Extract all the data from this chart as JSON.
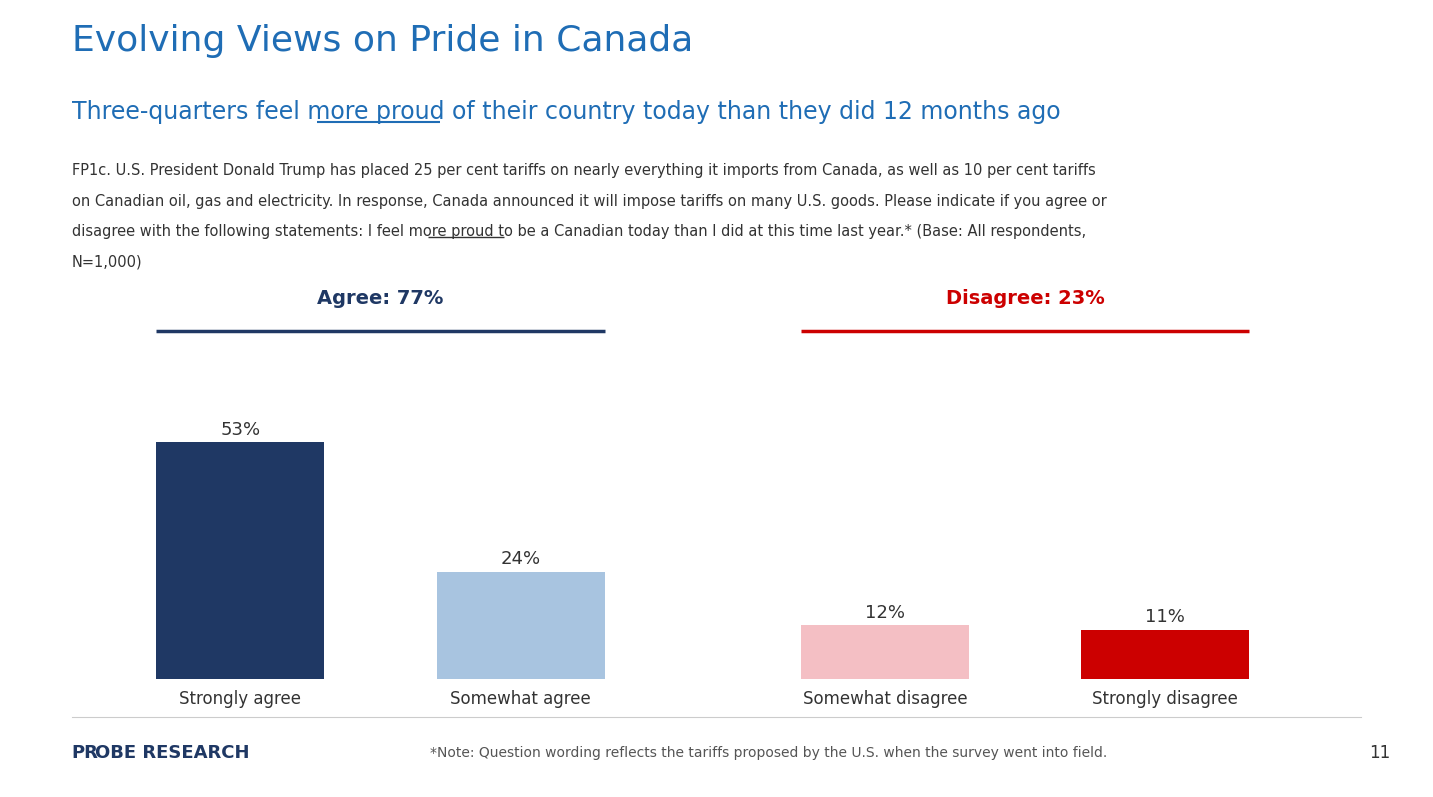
{
  "title": "Evolving Views on Pride in Canada",
  "subtitle": "Three-quarters feel more proud of their country today than they did 12 months ago",
  "subtitle_underline_word": "more proud",
  "subtitle_before_underline": "Three-quarters feel ",
  "body_text_line1": "FP1c. U.S. President Donald Trump has placed 25 per cent tariffs on nearly everything it imports from Canada, as well as 10 per cent tariffs",
  "body_text_line2": "on Canadian oil, gas and electricity. In response, Canada announced it will impose tariffs on many U.S. goods. Please indicate if you agree or",
  "body_text_line3": "disagree with the following statements: I feel more proud to be a Canadian today than I did at this time last year.* (Base: All respondents,",
  "body_text_line4": "N=1,000)",
  "body_underline_word": "more proud",
  "categories": [
    "Strongly agree",
    "Somewhat agree",
    "Somewhat disagree",
    "Strongly disagree"
  ],
  "values": [
    53,
    24,
    12,
    11
  ],
  "bar_colors": [
    "#1f3864",
    "#a8c4e0",
    "#f4bfc4",
    "#cc0000"
  ],
  "agree_label": "Agree: 77%",
  "disagree_label": "Disagree: 23%",
  "agree_color": "#1f3864",
  "disagree_color": "#cc0000",
  "agree_line_color": "#1f3864",
  "disagree_line_color": "#cc0000",
  "title_color": "#1f6db5",
  "subtitle_color": "#1f6db5",
  "body_color": "#333333",
  "footer_note": "*Note: Question wording reflects the tariffs proposed by the U.S. when the survey went into field.",
  "page_number": "11",
  "background_color": "#ffffff",
  "bar_width": 0.6,
  "ylim": [
    0,
    70
  ],
  "probe_text_probe": "PR",
  "probe_text_obe": "OBE",
  "probe_text_research": " RESEARCH"
}
